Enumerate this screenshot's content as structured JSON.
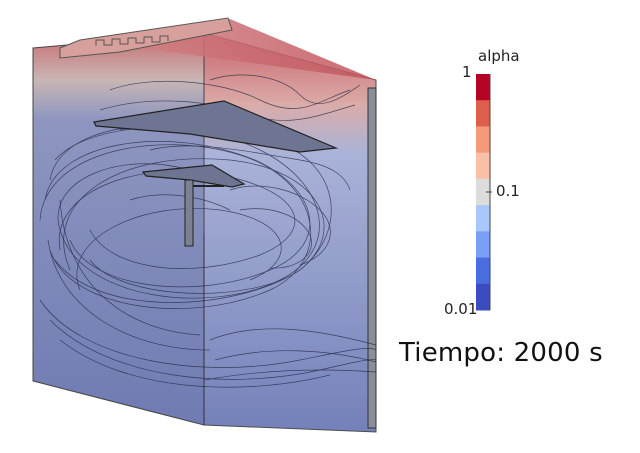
{
  "colorbar": {
    "title": "alpha",
    "ticks": [
      "1",
      "0.1",
      "0.01"
    ],
    "colors": [
      "#b40426",
      "#dd5f4b",
      "#f49a7b",
      "#f7c0a7",
      "#dddcdc",
      "#aac7fd",
      "#7b9ff9",
      "#4a6de0",
      "#3b4cc0"
    ]
  },
  "time_label": "Tiempo: 2000 s"
}
